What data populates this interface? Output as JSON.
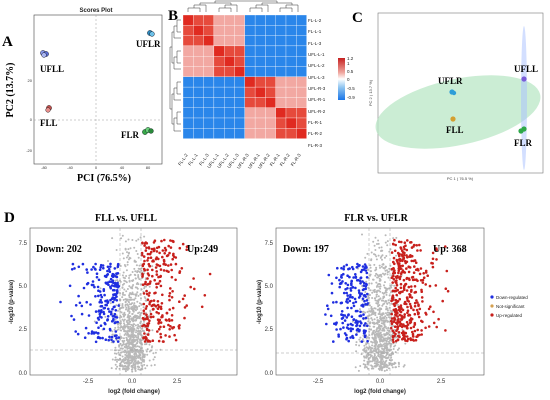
{
  "figure": {
    "panelA": {
      "letter": "A",
      "title": "Scores Plot",
      "xlabel": "PCI (76.5%)",
      "ylabel": "PC2 (13.7%)",
      "xticks": [
        "-80",
        "-40",
        "0",
        "40",
        "80"
      ],
      "yticks": [
        "20",
        "0",
        "-20"
      ],
      "group_labels": [
        "UFLR",
        "UFLL",
        "FLL",
        "FLR"
      ],
      "colors": {
        "UFLR": "#2e8bc0",
        "UFLL": "#5a6fd8",
        "FLL": "#c0504d",
        "FLR": "#3aa84a"
      }
    },
    "panelB": {
      "letter": "B",
      "rows": [
        "FL-L-2",
        "FL-L-1",
        "FL-L-3",
        "UFL-L-1",
        "UFL-L-2",
        "UFL-L-3",
        "UFL-R-3",
        "UFL-R-1",
        "UFL-R-2",
        "FL-R-1",
        "FL-R-2",
        "FL-R-3"
      ],
      "cols": [
        "FL-L-2",
        "FL-L-1",
        "FL-L-3",
        "UFL-L-1",
        "UFL-L-2",
        "UFL-L-3",
        "UFL-R-3",
        "UFL-R-1",
        "UFL-R-2",
        "FL-R-1",
        "FL-R-2",
        "FL-R-3"
      ],
      "legend_ticks": [
        "1.2",
        "1",
        "0.5",
        "0",
        "-0.5",
        "-0.9"
      ]
    },
    "panelC": {
      "letter": "C",
      "xlabel": "PC 1 ( 76.5 %)",
      "ylabel": "PC 2 ( 13.7 %)",
      "group_labels": [
        "UFLR",
        "UFLL",
        "FLL",
        "FLR"
      ]
    },
    "panelD": {
      "letter": "D",
      "left": {
        "title": "FLL vs. UFLL",
        "down": "Down: 202",
        "up": "Up:249",
        "xlabel": "log2 (fold change)",
        "ylabel": "-log10 (p-value)",
        "xticks": [
          "-2.5",
          "0.0",
          "2.5"
        ],
        "yticks": [
          "0.0",
          "2.5",
          "5.0",
          "7.5"
        ]
      },
      "right": {
        "title": "FLR vs. UFLR",
        "down": "Down: 197",
        "up": "Up: 368",
        "xlabel": "log2 (fold change)",
        "ylabel": "-log10 (p-value)",
        "xticks": [
          "-2.5",
          "0.0",
          "2.5"
        ],
        "yticks": [
          "0.0",
          "2.5",
          "5.0",
          "7.5"
        ]
      },
      "legend": [
        "Down-regulated",
        "Not-significant",
        "Up-regulated"
      ],
      "colors": {
        "down": "#1f2ee0",
        "ns": "#b8b8b8",
        "up": "#c8201c"
      }
    }
  }
}
